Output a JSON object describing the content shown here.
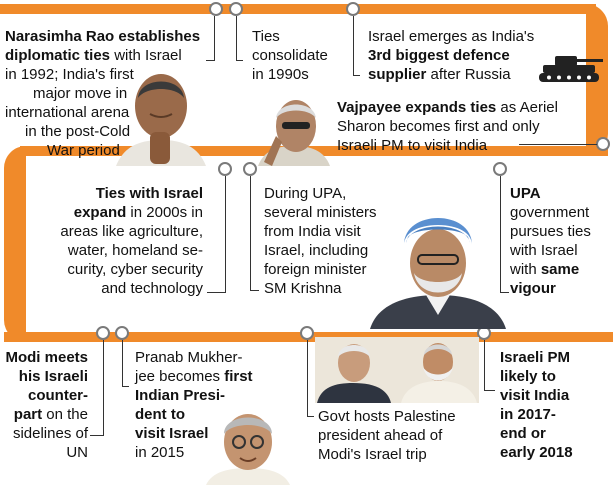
{
  "colors": {
    "timeline": "#f08a2a",
    "node_border": "#7a7a7a"
  },
  "events": {
    "rao": {
      "p1": "Narasimha Rao establishes",
      "p2": "diplomatic ties",
      "p3": " with Israel",
      "p4": "in 1992; India's first",
      "p5": "major move in",
      "p6": "international arena",
      "p7": "in the post-Cold",
      "p8": "War period"
    },
    "ties1990": {
      "l1": "Ties",
      "l2": "consolidate",
      "l3": "in 1990s"
    },
    "defence": {
      "l1": "Israel emerges as India's",
      "l2": "3rd biggest defence",
      "l3": "supplier",
      "l4": " after Russia"
    },
    "vajpayee": {
      "l1a": "Vajpayee expands ties",
      "l1b": " as Aeriel",
      "l2": "Sharon becomes first and only",
      "l3": "Israeli PM to visit India"
    },
    "ties2000": {
      "l1": "Ties with Israel",
      "l2a": "expand",
      "l2b": " in 2000s in",
      "l3": "areas like agriculture,",
      "l4": "water, homeland se-",
      "l5": "curity, cyber security",
      "l6": "and technology"
    },
    "upa_ministers": {
      "l1": "During UPA,",
      "l2": "several ministers",
      "l3": "from India visit",
      "l4": "Israel, including",
      "l5": "foreign minister",
      "l6": "SM Krishna"
    },
    "upa_govt": {
      "l1": "UPA",
      "l2": "government",
      "l3": "pursues ties",
      "l4": "with Israel",
      "l5a": "with ",
      "l5b": "same",
      "l6": "vigour"
    },
    "modi_meets": {
      "l1": "Modi meets",
      "l2": "his Israeli",
      "l3": "counter-",
      "l4a": "part",
      "l4b": " on the",
      "l5": "sidelines of",
      "l6": "UN"
    },
    "pranab": {
      "l1": "Pranab Mukher-",
      "l2a": "jee becomes ",
      "l2b": "first",
      "l3": "Indian Presi-",
      "l4": "dent to",
      "l5": "visit Israel",
      "l6": "in 2015"
    },
    "palestine": {
      "l1": "Govt hosts Palestine",
      "l2": "president ahead of",
      "l3": "Modi's Israel trip"
    },
    "israeli_pm": {
      "l1": "Israeli PM",
      "l2": "likely to",
      "l3": "visit India",
      "l4": "in 2017-",
      "l5": "end or",
      "l6": "early 2018"
    }
  }
}
